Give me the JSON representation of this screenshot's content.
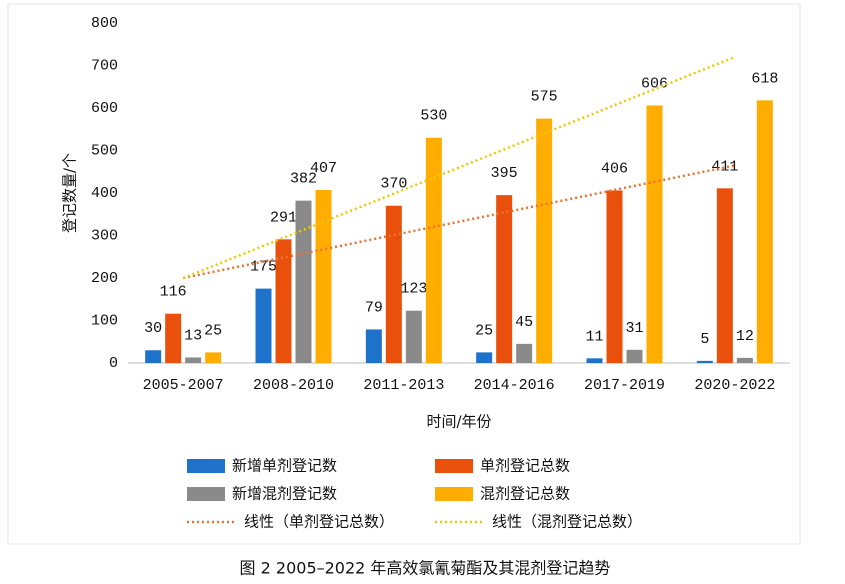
{
  "chart_data": {
    "type": "bar",
    "caption": "图 2 2005–2022 年高效氯氰菊酯及其混剂登记趋势",
    "x_label": "时间/年份",
    "y_label": "登记数量/个",
    "categories": [
      "2005-2007",
      "2008-2010",
      "2011-2013",
      "2014-2016",
      "2017-2019",
      "2020-2022"
    ],
    "series": [
      {
        "name": "新增单剂登记数",
        "color": "#1f72c9",
        "values": [
          30,
          175,
          79,
          25,
          11,
          5
        ]
      },
      {
        "name": "单剂登记总数",
        "color": "#e8500c",
        "values": [
          116,
          291,
          370,
          395,
          406,
          411
        ]
      },
      {
        "name": "新增混剂登记数",
        "color": "#8a8a8a",
        "values": [
          13,
          382,
          123,
          45,
          31,
          12
        ]
      },
      {
        "name": "混剂登记总数",
        "color": "#ffad00",
        "values": [
          25,
          407,
          530,
          575,
          606,
          618
        ]
      },
      {
        "name": "线性（单剂登记总数）",
        "type": "line",
        "dotted": true,
        "color": "#f07030",
        "values": [
          200,
          253,
          306,
          359,
          412,
          465
        ]
      },
      {
        "name": "线性（混剂登记总数）",
        "type": "line",
        "dotted": true,
        "color": "#f0c800",
        "values": [
          200,
          304,
          408,
          512,
          616,
          720
        ]
      }
    ],
    "ylim": [
      0,
      800
    ],
    "yticks": [
      0,
      100,
      200,
      300,
      400,
      500,
      600,
      700,
      800
    ],
    "grid": false
  }
}
